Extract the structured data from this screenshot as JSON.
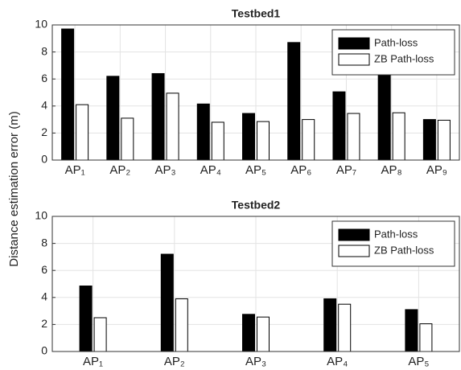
{
  "chart_data": [
    {
      "type": "bar",
      "title": "Testbed1",
      "ylabel": "Distance estimation error (m)",
      "categories": [
        "AP₁",
        "AP₂",
        "AP₃",
        "AP₄",
        "AP₅",
        "AP₆",
        "AP₇",
        "AP₈",
        "AP₉"
      ],
      "series": [
        {
          "name": "Path-loss",
          "color": "#000000",
          "values": [
            9.7,
            6.2,
            6.4,
            4.15,
            3.45,
            8.7,
            5.05,
            6.6,
            3.0
          ]
        },
        {
          "name": "ZB Path-loss",
          "color": "#ffffff",
          "values": [
            4.1,
            3.1,
            4.95,
            2.8,
            2.85,
            3.0,
            3.45,
            3.5,
            2.95
          ]
        }
      ],
      "ylim": [
        0,
        10
      ],
      "yticks": [
        0,
        2,
        4,
        6,
        8,
        10
      ],
      "grid": true,
      "legend": "northeast"
    },
    {
      "type": "bar",
      "title": "Testbed2",
      "categories": [
        "AP₁",
        "AP₂",
        "AP₃",
        "AP₄",
        "AP₅"
      ],
      "series": [
        {
          "name": "Path-loss",
          "color": "#000000",
          "values": [
            4.85,
            7.2,
            2.75,
            3.9,
            3.1
          ]
        },
        {
          "name": "ZB Path-loss",
          "color": "#ffffff",
          "values": [
            2.5,
            3.9,
            2.55,
            3.5,
            2.05
          ]
        }
      ],
      "ylim": [
        0,
        10
      ],
      "yticks": [
        0,
        2,
        4,
        6,
        8,
        10
      ],
      "grid": true,
      "legend": "northeast"
    }
  ]
}
